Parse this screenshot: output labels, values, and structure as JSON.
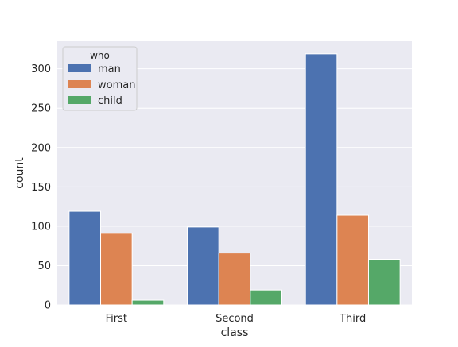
{
  "chart_data": {
    "type": "bar",
    "xlabel": "class",
    "ylabel": "count",
    "categories": [
      "First",
      "Second",
      "Third"
    ],
    "ylim": [
      0,
      335
    ],
    "yticks": [
      0,
      50,
      100,
      150,
      200,
      250,
      300
    ],
    "grid": true,
    "legend": {
      "title": "who",
      "placement": "top-left"
    },
    "series": [
      {
        "name": "man",
        "color": "#4c72b0",
        "values": [
          119,
          99,
          319
        ]
      },
      {
        "name": "woman",
        "color": "#dd8452",
        "values": [
          91,
          66,
          114
        ]
      },
      {
        "name": "child",
        "color": "#55a868",
        "values": [
          6,
          19,
          58
        ]
      }
    ]
  }
}
